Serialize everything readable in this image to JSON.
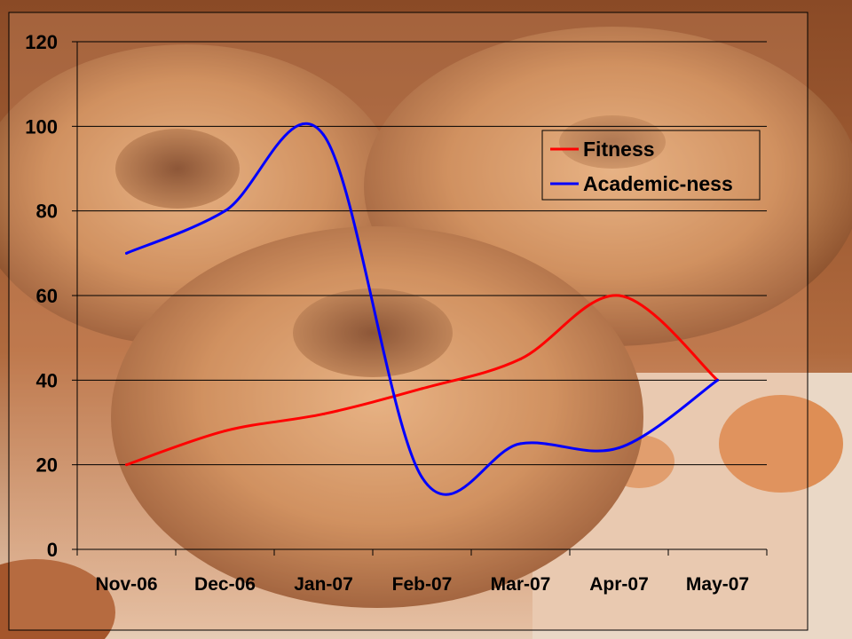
{
  "background": {
    "image": "donuts-photo",
    "colors": {
      "dark": "#6e3b21",
      "mid": "#b06a3e",
      "light": "#e2b07c",
      "paper": "#e9d6c4",
      "box_print": "#d9762f"
    }
  },
  "chart_data": {
    "type": "line",
    "title": "",
    "xlabel": "",
    "ylabel": "",
    "categories": [
      "Nov-06",
      "Dec-06",
      "Jan-07",
      "Feb-07",
      "Mar-07",
      "Apr-07",
      "May-07"
    ],
    "ylim": [
      0,
      120
    ],
    "yticks": [
      "0",
      "20",
      "40",
      "60",
      "80",
      "100",
      "120"
    ],
    "grid": "horizontal",
    "smooth": true,
    "legend_position": "top-right",
    "series": [
      {
        "name": "Fitness",
        "color": "#ff0000",
        "values": [
          20,
          28,
          32,
          38,
          45,
          60,
          40
        ]
      },
      {
        "name": "Academic-ness",
        "color": "#0000ff",
        "values": [
          70,
          80,
          98,
          17,
          25,
          24,
          40
        ]
      }
    ]
  }
}
